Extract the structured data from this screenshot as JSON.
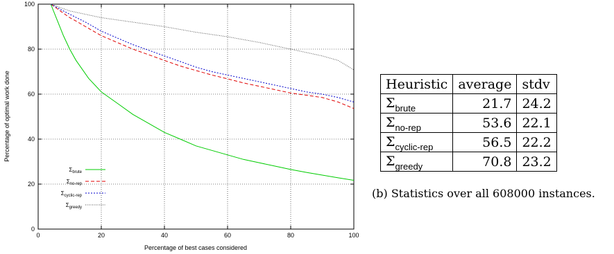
{
  "chart_data": {
    "type": "line",
    "xlabel": "Percentage of best cases considered",
    "ylabel": "Percentage of optimal work done",
    "xlim": [
      0,
      100
    ],
    "ylim": [
      0,
      100
    ],
    "xticks": [
      "0",
      "20",
      "40",
      "60",
      "80",
      "100"
    ],
    "yticks": [
      "0",
      "20",
      "40",
      "60",
      "80",
      "100"
    ],
    "grid": true,
    "legend_position": "bottom-left",
    "series": [
      {
        "name": "Σbrute",
        "base": "Σ",
        "sub": "brute",
        "color": "#00cc00",
        "dash": "none",
        "points": [
          [
            4,
            100
          ],
          [
            6,
            93
          ],
          [
            8,
            86
          ],
          [
            10,
            80
          ],
          [
            12,
            75
          ],
          [
            14,
            71
          ],
          [
            16,
            67
          ],
          [
            18,
            64
          ],
          [
            20,
            61
          ],
          [
            25,
            56
          ],
          [
            30,
            51
          ],
          [
            35,
            47
          ],
          [
            40,
            43
          ],
          [
            45,
            40
          ],
          [
            50,
            37
          ],
          [
            55,
            35
          ],
          [
            60,
            33
          ],
          [
            65,
            31
          ],
          [
            70,
            29.5
          ],
          [
            75,
            28
          ],
          [
            80,
            26.5
          ],
          [
            85,
            25.2
          ],
          [
            90,
            24
          ],
          [
            95,
            22.8
          ],
          [
            100,
            21.7
          ]
        ]
      },
      {
        "name": "Σno-rep",
        "base": "Σ",
        "sub": "no-rep",
        "color": "#e00000",
        "dash": "5,3",
        "points": [
          [
            4,
            100
          ],
          [
            6,
            98
          ],
          [
            8,
            96
          ],
          [
            10,
            94
          ],
          [
            12,
            92.5
          ],
          [
            15,
            90
          ],
          [
            20,
            86
          ],
          [
            25,
            83
          ],
          [
            30,
            80
          ],
          [
            35,
            77.5
          ],
          [
            40,
            75
          ],
          [
            45,
            72.5
          ],
          [
            50,
            70.5
          ],
          [
            55,
            68.5
          ],
          [
            60,
            66.8
          ],
          [
            65,
            65
          ],
          [
            70,
            63.5
          ],
          [
            75,
            62
          ],
          [
            80,
            60.5
          ],
          [
            85,
            59.5
          ],
          [
            90,
            58.5
          ],
          [
            95,
            56.5
          ],
          [
            100,
            53.6
          ]
        ]
      },
      {
        "name": "Σcyclic-rep",
        "base": "Σ",
        "sub": "cyclic-rep",
        "color": "#0000cc",
        "dash": "2,2",
        "points": [
          [
            4,
            100
          ],
          [
            6,
            98.5
          ],
          [
            8,
            97
          ],
          [
            10,
            95.5
          ],
          [
            15,
            92
          ],
          [
            20,
            88
          ],
          [
            25,
            85
          ],
          [
            30,
            82
          ],
          [
            35,
            79.5
          ],
          [
            40,
            77
          ],
          [
            45,
            74.5
          ],
          [
            50,
            72
          ],
          [
            55,
            70
          ],
          [
            60,
            68.5
          ],
          [
            65,
            67
          ],
          [
            70,
            65.5
          ],
          [
            75,
            64
          ],
          [
            80,
            62.5
          ],
          [
            85,
            61
          ],
          [
            90,
            60
          ],
          [
            95,
            58.5
          ],
          [
            100,
            56.5
          ]
        ]
      },
      {
        "name": "Σgreedy",
        "base": "Σ",
        "sub": "greedy",
        "color": "#555555",
        "dash": "1,1.5",
        "points": [
          [
            4,
            100
          ],
          [
            10,
            97
          ],
          [
            20,
            94
          ],
          [
            30,
            92
          ],
          [
            40,
            90
          ],
          [
            50,
            87.5
          ],
          [
            60,
            85.5
          ],
          [
            70,
            83
          ],
          [
            80,
            80
          ],
          [
            90,
            77
          ],
          [
            95,
            75
          ],
          [
            100,
            70.8
          ]
        ]
      }
    ]
  },
  "stats_table": {
    "headers": [
      "Heuristic",
      "average",
      "stdv"
    ],
    "rows": [
      {
        "base": "Σ",
        "sub": "brute",
        "average": "21.7",
        "stdv": "24.2"
      },
      {
        "base": "Σ",
        "sub": "no-rep",
        "average": "53.6",
        "stdv": "22.1"
      },
      {
        "base": "Σ",
        "sub": "cyclic-rep",
        "average": "56.5",
        "stdv": "22.2"
      },
      {
        "base": "Σ",
        "sub": "greedy",
        "average": "70.8",
        "stdv": "23.2"
      }
    ],
    "caption": "(b) Statistics over all 608000 instances."
  }
}
